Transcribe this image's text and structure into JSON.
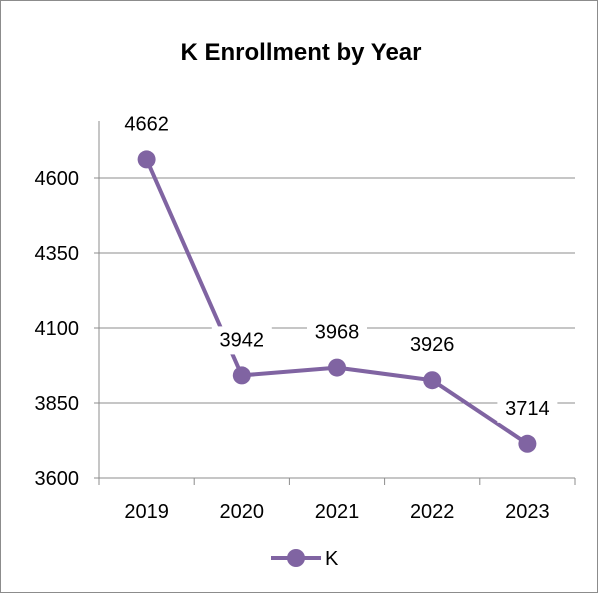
{
  "chart_data": {
    "type": "line",
    "title": "K Enrollment by Year",
    "xlabel": "",
    "ylabel": "",
    "categories": [
      "2019",
      "2020",
      "2021",
      "2022",
      "2023"
    ],
    "series": [
      {
        "name": "K",
        "values": [
          4662,
          3942,
          3968,
          3926,
          3714
        ]
      }
    ],
    "ylim": [
      3600,
      4600
    ],
    "yticks": [
      "3600",
      "3850",
      "4100",
      "4350",
      "4600"
    ],
    "data_labels": [
      "4662",
      "3942",
      "3968",
      "3926",
      "3714"
    ],
    "grid": true,
    "legend": "bottom",
    "colors": {
      "series": "#8064a2",
      "grid": "#8c8c8c",
      "axis": "#8c8c8c"
    }
  }
}
